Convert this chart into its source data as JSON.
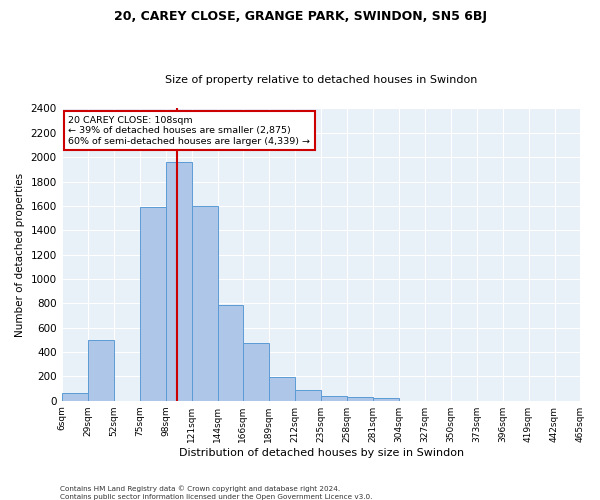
{
  "title_line1": "20, CAREY CLOSE, GRANGE PARK, SWINDON, SN5 6BJ",
  "title_line2": "Size of property relative to detached houses in Swindon",
  "xlabel": "Distribution of detached houses by size in Swindon",
  "ylabel": "Number of detached properties",
  "footer_line1": "Contains HM Land Registry data © Crown copyright and database right 2024.",
  "footer_line2": "Contains public sector information licensed under the Open Government Licence v3.0.",
  "annotation_line1": "20 CAREY CLOSE: 108sqm",
  "annotation_line2": "← 39% of detached houses are smaller (2,875)",
  "annotation_line3": "60% of semi-detached houses are larger (4,339) →",
  "property_sqm": 108,
  "bar_edges": [
    6,
    29,
    52,
    75,
    98,
    121,
    144,
    166,
    189,
    212,
    235,
    258,
    281,
    304,
    327,
    350,
    373,
    396,
    419,
    442,
    465
  ],
  "bar_heights": [
    60,
    500,
    0,
    1590,
    1960,
    1600,
    790,
    470,
    195,
    90,
    35,
    30,
    20,
    0,
    0,
    0,
    0,
    0,
    0,
    0
  ],
  "bar_color": "#aec6e8",
  "bar_edge_color": "#5b9bd5",
  "vline_color": "#cc0000",
  "vline_x": 108,
  "annotation_box_color": "#cc0000",
  "background_color": "#e8f0f8",
  "ylim": [
    0,
    2400
  ],
  "yticks": [
    0,
    200,
    400,
    600,
    800,
    1000,
    1200,
    1400,
    1600,
    1800,
    2000,
    2200,
    2400
  ],
  "tick_labels": [
    "6sqm",
    "29sqm",
    "52sqm",
    "75sqm",
    "98sqm",
    "121sqm",
    "144sqm",
    "166sqm",
    "189sqm",
    "212sqm",
    "235sqm",
    "258sqm",
    "281sqm",
    "304sqm",
    "327sqm",
    "350sqm",
    "373sqm",
    "396sqm",
    "419sqm",
    "442sqm",
    "465sqm"
  ]
}
